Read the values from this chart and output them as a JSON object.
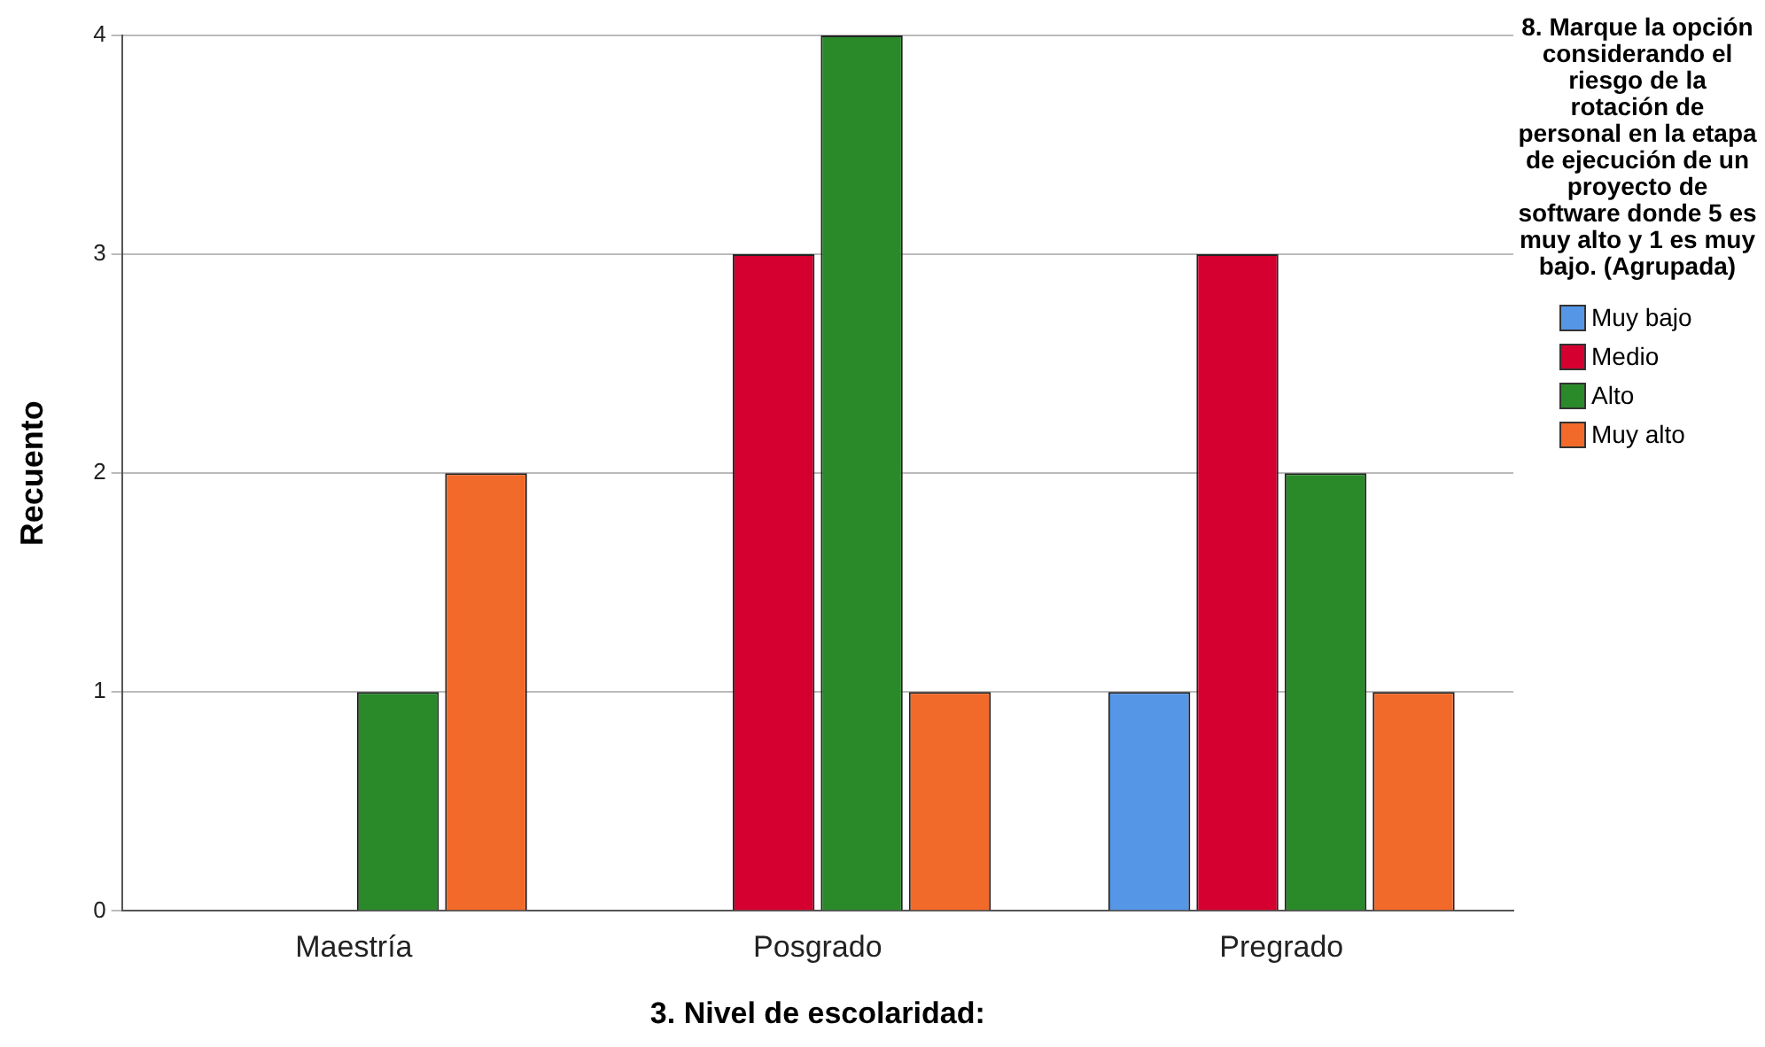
{
  "chart_data": {
    "type": "bar",
    "xlabel": "3. Nivel de escolaridad:",
    "ylabel": "Recuento",
    "legend_title": "8. Marque la opción considerando el riesgo de la rotación de personal en la etapa de ejecución de un proyecto de software donde 5 es muy alto y 1 es muy bajo. (Agrupada)",
    "categories": [
      "Maestría",
      "Posgrado",
      "Pregrado"
    ],
    "series": [
      {
        "name": "Muy bajo",
        "color": "#5596e6",
        "values": [
          0,
          0,
          1
        ]
      },
      {
        "name": "Medio",
        "color": "#d5002f",
        "values": [
          0,
          3,
          3
        ]
      },
      {
        "name": "Alto",
        "color": "#2a8a2a",
        "values": [
          1,
          4,
          2
        ]
      },
      {
        "name": "Muy alto",
        "color": "#f26a2a",
        "values": [
          2,
          1,
          1
        ]
      }
    ],
    "ylim": [
      0,
      4
    ],
    "yticks": [
      0,
      1,
      2,
      3,
      4
    ],
    "grid": "y",
    "legend": "right"
  }
}
